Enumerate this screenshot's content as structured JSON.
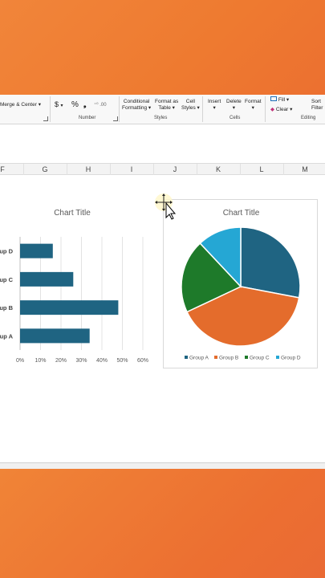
{
  "ribbon": {
    "merge_center": "Merge & Center",
    "number_symbols": [
      "$",
      "%",
      "9",
      "←.0",
      ".00"
    ],
    "conditional_formatting": [
      "Conditional",
      "Formatting"
    ],
    "format_as_table": [
      "Format as",
      "Table"
    ],
    "cell_styles": [
      "Cell",
      "Styles"
    ],
    "insert": "Insert",
    "delete": "Delete",
    "format": "Format",
    "fill": "Fill",
    "clear": "Clear",
    "sort_filter": [
      "Sort",
      "Filter"
    ],
    "groups": {
      "number": "Number",
      "styles": "Styles",
      "cells": "Cells",
      "editing": "Editing"
    }
  },
  "columns": [
    "F",
    "G",
    "H",
    "I",
    "J",
    "K",
    "L",
    "M"
  ],
  "bar_chart": {
    "title": "Chart Title",
    "chart_data": {
      "type": "bar",
      "orientation": "horizontal",
      "categories": [
        "Group A",
        "Group B",
        "Group C",
        "Group D"
      ],
      "visible_category_labels": [
        "oup A",
        "oup B",
        "oup C",
        "oup D"
      ],
      "values": [
        0.34,
        0.48,
        0.26,
        0.16
      ],
      "xlim": [
        0,
        0.6
      ],
      "tick_labels": [
        "0%",
        "10%",
        "20%",
        "30%",
        "40%",
        "50%",
        "60%"
      ],
      "color": "#1f6482",
      "grid": true
    }
  },
  "pie_chart": {
    "title": "Chart Title",
    "legend_labels": [
      "Group A",
      "Group B",
      "Group C",
      "Group D"
    ],
    "chart_data": {
      "type": "pie",
      "categories": [
        "Group A",
        "Group B",
        "Group C",
        "Group D"
      ],
      "values": [
        0.28,
        0.4,
        0.2,
        0.12
      ],
      "colors": [
        "#1f6482",
        "#e46c2c",
        "#1e7a2a",
        "#25a7d4"
      ],
      "legend": "bottom"
    }
  }
}
